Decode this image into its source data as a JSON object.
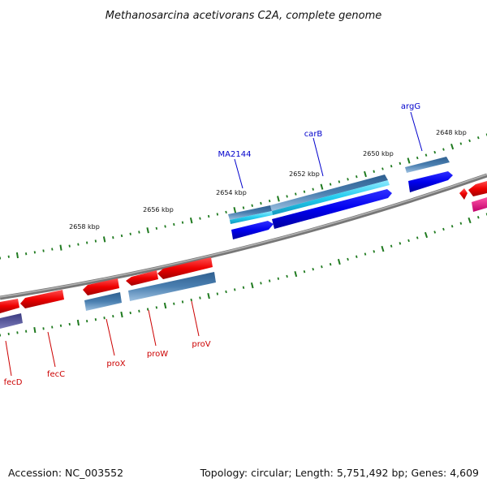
{
  "title": "Methanosarcina acetivorans C2A, complete genome",
  "footer": {
    "accession": "Accession: NC_003552",
    "summary": "Topology: circular; Length: 5,751,492 bp; Genes: 4,609"
  },
  "ticks": [
    "2658 kbp",
    "2656 kbp",
    "2654 kbp",
    "2652 kbp",
    "2650 kbp",
    "2648 kbp"
  ],
  "genes": {
    "forward": [
      "MA2144",
      "carB",
      "argG"
    ],
    "reverse": [
      "fecD",
      "fecC",
      "proX",
      "proW",
      "proV"
    ]
  },
  "colors": {
    "forward_label": "#0000cc",
    "reverse_label": "#cc0000",
    "backbone": "#7f7f7f",
    "tick": "#1f7a1f",
    "red_feature": "#ee0000",
    "blue_feature": "#0000ee",
    "steel_feature": "#4a7fb0",
    "cyan_feature": "#22ccee",
    "magenta_feature": "#e6007e",
    "purple_feature": "#4b4b99"
  }
}
